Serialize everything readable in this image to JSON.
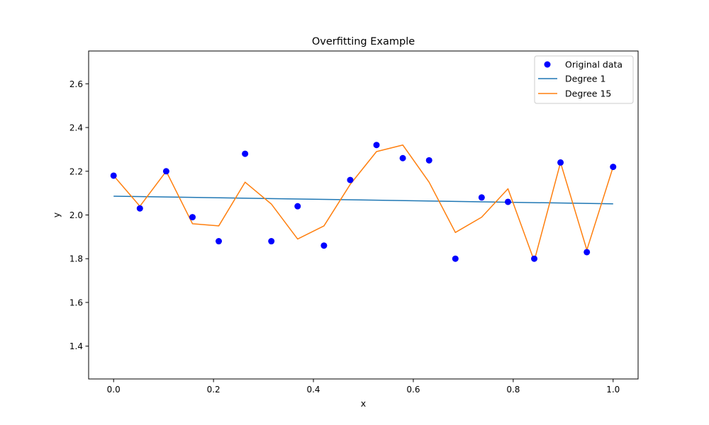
{
  "chart_data": {
    "type": "line",
    "title": "Overfitting Example",
    "xlabel": "x",
    "ylabel": "y",
    "xlim": [
      -0.05,
      1.05
    ],
    "ylim": [
      1.25,
      2.75
    ],
    "xticks": [
      0.0,
      0.2,
      0.4,
      0.6,
      0.8,
      1.0
    ],
    "xtick_labels": [
      "0.0",
      "0.2",
      "0.4",
      "0.6",
      "0.8",
      "1.0"
    ],
    "yticks": [
      1.4,
      1.6,
      1.8,
      2.0,
      2.2,
      2.4,
      2.6
    ],
    "ytick_labels": [
      "1.4",
      "1.6",
      "1.8",
      "2.0",
      "2.2",
      "2.4",
      "2.6"
    ],
    "grid": false,
    "legend_position": "top-right",
    "series": [
      {
        "name": "Original data",
        "kind": "scatter",
        "color": "#0000ff",
        "x": [
          0.0,
          0.0526,
          0.1053,
          0.1579,
          0.2105,
          0.2632,
          0.3158,
          0.3684,
          0.4211,
          0.4737,
          0.5263,
          0.5789,
          0.6316,
          0.6842,
          0.7368,
          0.7895,
          0.8421,
          0.8947,
          0.9474,
          1.0
        ],
        "y": [
          2.18,
          2.03,
          2.2,
          1.99,
          1.88,
          2.28,
          1.88,
          2.04,
          1.86,
          2.16,
          2.32,
          2.26,
          2.25,
          1.8,
          2.08,
          2.06,
          1.8,
          2.24,
          1.83,
          2.22
        ]
      },
      {
        "name": "Degree 1",
        "kind": "line",
        "color": "#1f77b4",
        "x": [
          0.0,
          1.0
        ],
        "y": [
          2.086,
          2.051
        ]
      },
      {
        "name": "Degree 15",
        "kind": "line",
        "color": "#ff7f0e",
        "x": [
          0.0,
          0.0526,
          0.1053,
          0.1579,
          0.2105,
          0.2632,
          0.3158,
          0.3684,
          0.4211,
          0.4737,
          0.5263,
          0.5789,
          0.6316,
          0.6842,
          0.7368,
          0.7895,
          0.8421,
          0.8947,
          0.9474,
          1.0
        ],
        "y": [
          2.18,
          2.04,
          2.2,
          1.96,
          1.95,
          2.15,
          2.05,
          1.89,
          1.95,
          2.14,
          2.29,
          2.32,
          2.15,
          1.92,
          1.99,
          2.12,
          1.79,
          2.24,
          1.84,
          2.22
        ]
      }
    ]
  }
}
